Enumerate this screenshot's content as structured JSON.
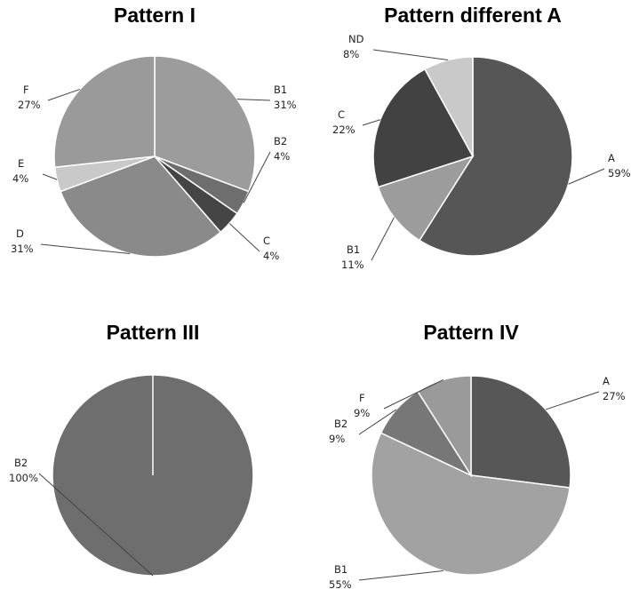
{
  "chart_data": [
    {
      "type": "pie",
      "title": "Pattern I",
      "slices": [
        {
          "label": "B1",
          "value": 31,
          "pct": "31%",
          "color": "#9c9c9c"
        },
        {
          "label": "B2",
          "value": 4,
          "pct": "4%",
          "color": "#6e6e6e"
        },
        {
          "label": "C",
          "value": 4,
          "pct": "4%",
          "color": "#454545"
        },
        {
          "label": "D",
          "value": 31,
          "pct": "31%",
          "color": "#8a8a8a"
        },
        {
          "label": "E",
          "value": 4,
          "pct": "4%",
          "color": "#c9c9c9"
        },
        {
          "label": "F",
          "value": 27,
          "pct": "27%",
          "color": "#9a9a9a"
        }
      ]
    },
    {
      "type": "pie",
      "title": "Pattern different A",
      "slices": [
        {
          "label": "A",
          "value": 59,
          "pct": "59%",
          "color": "#565656"
        },
        {
          "label": "B1",
          "value": 11,
          "pct": "11%",
          "color": "#9c9c9c"
        },
        {
          "label": "C",
          "value": 22,
          "pct": "22%",
          "color": "#424242"
        },
        {
          "label": "ND",
          "value": 8,
          "pct": "8%",
          "color": "#c9c9c9"
        }
      ]
    },
    {
      "type": "pie",
      "title": "Pattern III",
      "slices": [
        {
          "label": "B2",
          "value": 100,
          "pct": "100%",
          "color": "#6e6e6e"
        }
      ]
    },
    {
      "type": "pie",
      "title": "Pattern IV",
      "slices": [
        {
          "label": "A",
          "value": 27,
          "pct": "27%",
          "color": "#575757"
        },
        {
          "label": "B1",
          "value": 55,
          "pct": "55%",
          "color": "#a2a2a2"
        },
        {
          "label": "B2",
          "value": 9,
          "pct": "9%",
          "color": "#777777"
        },
        {
          "label": "F",
          "value": 9,
          "pct": "9%",
          "color": "#9a9a9a"
        }
      ]
    }
  ]
}
